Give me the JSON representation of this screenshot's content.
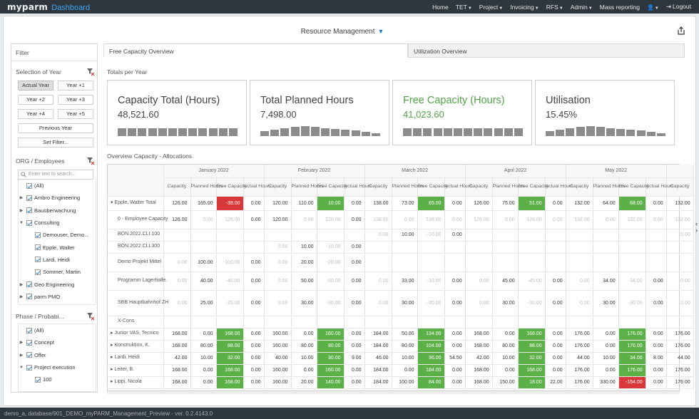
{
  "nav": {
    "brand": "myparm",
    "app": "Dashboard",
    "items": [
      "Home",
      "TET",
      "Project",
      "Invoicing",
      "RFS",
      "Admin",
      "Mass reporting",
      "",
      "Logout"
    ]
  },
  "page": {
    "title": "Resource Management"
  },
  "filter": {
    "heading": "Filter",
    "year_section": "Selection of Year",
    "year_buttons": [
      "Actual Year",
      "Year +1",
      "Year +2",
      "Year +3",
      "Year +4",
      "Year +5"
    ],
    "previous_year": "Previous Year",
    "set_filter": "Set Filter...",
    "org_section": "ORG / Employees",
    "search_placeholder": "Enter text to search...",
    "org_tree": [
      {
        "label": "(All)",
        "level": 0,
        "toggle": ""
      },
      {
        "label": "Ambro Engineering",
        "level": 0,
        "toggle": "▶"
      },
      {
        "label": "Bauüberwachung",
        "level": 0,
        "toggle": "▶"
      },
      {
        "label": "Consulting",
        "level": 0,
        "toggle": "▼"
      },
      {
        "label": "Demouser, Demo...",
        "level": 1,
        "toggle": ""
      },
      {
        "label": "Epple, Walter",
        "level": 1,
        "toggle": ""
      },
      {
        "label": "Lardi, Heidi",
        "level": 1,
        "toggle": ""
      },
      {
        "label": "Sommer, Martin",
        "level": 1,
        "toggle": ""
      },
      {
        "label": "Geo Engineering",
        "level": 0,
        "toggle": "▶"
      },
      {
        "label": "parm PMO",
        "level": 0,
        "toggle": "▶"
      }
    ],
    "phase_section": "Phase / Probabi...",
    "phase_tree": [
      {
        "label": "(All)",
        "level": 0,
        "toggle": ""
      },
      {
        "label": "Concept",
        "level": 0,
        "toggle": "▶"
      },
      {
        "label": "Offer",
        "level": 0,
        "toggle": "▶"
      },
      {
        "label": "Project execution",
        "level": 0,
        "toggle": "▼"
      },
      {
        "label": "100",
        "level": 1,
        "toggle": ""
      }
    ]
  },
  "tabs": [
    "Free Capacity Overview",
    "Utilization Overview"
  ],
  "totals_label": "Totals per Year",
  "kpis": [
    {
      "title": "Capacity Total (Hours)",
      "value": "48,521.60",
      "spark": [
        0.7,
        0.7,
        0.7,
        0.7,
        0.7,
        0.7,
        0.7,
        0.7,
        0.7,
        0.7,
        0.7,
        0.7
      ],
      "accent": "#444444"
    },
    {
      "title": "Total Planned Hours",
      "value": "7,498.00",
      "spark": [
        0.45,
        0.55,
        0.7,
        0.8,
        0.85,
        0.8,
        0.7,
        0.6,
        0.55,
        0.5,
        0.35,
        0.25
      ],
      "accent": "#444444"
    },
    {
      "title": "Free Capacity (Hours)",
      "value": "41,023.60",
      "spark": [
        0.7,
        0.7,
        0.7,
        0.7,
        0.7,
        0.7,
        0.7,
        0.7,
        0.7,
        0.7,
        0.7,
        0.7
      ],
      "accent": "#52a547"
    },
    {
      "title": "Utilisation",
      "value": "15.45%",
      "spark": [
        0.45,
        0.55,
        0.7,
        0.8,
        0.85,
        0.8,
        0.7,
        0.6,
        0.55,
        0.5,
        0.35,
        0.25
      ],
      "accent": "#444444"
    }
  ],
  "grid_label": "Overview Capacity - Allocations",
  "grid": {
    "months": [
      "January 2022",
      "February 2022",
      "March 2022",
      "April 2022",
      "May 2022",
      ""
    ],
    "columns": [
      "Capacity",
      "Planned Hours",
      "Free Capacity",
      "Actual Hours"
    ],
    "rows": [
      {
        "name": "▾ Epple, Walter Total",
        "h": 20,
        "cells": [
          [
            "126.00",
            "165.00",
            "-39.00",
            "0.00"
          ],
          [
            "120.00",
            "110.00",
            "10.00",
            "0.00"
          ],
          [
            "138.00",
            "73.00",
            "65.00",
            "0.00"
          ],
          [
            "126.00",
            "75.00",
            "51.00",
            "0.00"
          ],
          [
            "132.00",
            "64.00",
            "68.00",
            "0.00"
          ],
          [
            "132.00"
          ]
        ],
        "kind": "total"
      },
      {
        "name": "0 - Employee Capacity",
        "h": 26,
        "cells": [
          [
            "126.00",
            "0.00",
            "126.00",
            "0.00"
          ],
          [
            "120.00",
            "0.00",
            "120.00",
            "0.00"
          ],
          [
            "138.00",
            "0.00",
            "138.00",
            "0.00"
          ],
          [
            "126.00",
            "0.00",
            "126.00",
            "0.00"
          ],
          [
            "132.00",
            "0.00",
            "132.00",
            "0.00"
          ],
          [
            "132.00"
          ]
        ],
        "kind": "cap"
      },
      {
        "name": "BON.2022.CLI.100",
        "h": 17,
        "cells": [
          [
            "",
            "",
            "",
            ""
          ],
          [
            "",
            "",
            "",
            ""
          ],
          [
            "0.00",
            "10.00",
            "-10.00",
            "0.00"
          ],
          [
            "",
            "",
            "",
            ""
          ],
          [
            "",
            "",
            "",
            ""
          ],
          [
            "0.00"
          ]
        ],
        "kind": "alloc"
      },
      {
        "name": "BON.2022.CLI.300",
        "h": 17,
        "cells": [
          [
            "",
            "",
            "",
            ""
          ],
          [
            "0.00",
            "10.00",
            "-10.00",
            "0.00"
          ],
          [
            "",
            "",
            "",
            ""
          ],
          [
            "",
            "",
            "",
            ""
          ],
          [
            "",
            "",
            "",
            ""
          ],
          [
            ""
          ]
        ],
        "kind": "alloc"
      },
      {
        "name": "Demo Projekt Mittel",
        "h": 26,
        "cells": [
          [
            "0.00",
            "100.00",
            "-100.00",
            "0.00"
          ],
          [
            "0.00",
            "20.00",
            "-20.00",
            "0.00"
          ],
          [
            "",
            "",
            "",
            ""
          ],
          [
            "",
            "",
            "",
            ""
          ],
          [
            "",
            "",
            "",
            ""
          ],
          [
            ""
          ]
        ],
        "kind": "alloc"
      },
      {
        "name": "Programm Lagerhalle.",
        "h": 26,
        "cells": [
          [
            "0.00",
            "40.00",
            "-40.00",
            "0.00"
          ],
          [
            "0.00",
            "50.00",
            "-50.00",
            "0.00"
          ],
          [
            "0.00",
            "33.00",
            "-33.00",
            "0.00"
          ],
          [
            "0.00",
            "45.00",
            "-45.00",
            "0.00"
          ],
          [
            "0.00",
            "34.00",
            "-34.00",
            "0.00"
          ],
          [
            "0.00"
          ]
        ],
        "kind": "alloc"
      },
      {
        "name": "SBB Hauptbahnhof ZH",
        "h": 36,
        "cells": [
          [
            "0.00",
            "25.00",
            "-25.00",
            "0.00"
          ],
          [
            "0.00",
            "30.00",
            "-30.00",
            "0.00"
          ],
          [
            "0.00",
            "30.00",
            "-30.00",
            "0.00"
          ],
          [
            "0.00",
            "30.00",
            "-30.00",
            "0.00"
          ],
          [
            "0.00",
            "30.00",
            "-30.00",
            "0.00"
          ],
          [
            "0.00"
          ]
        ],
        "kind": "alloc"
      },
      {
        "name": "X-Cons",
        "h": 17,
        "cells": [
          [
            "",
            "",
            "",
            ""
          ],
          [
            "",
            "",
            "",
            ""
          ],
          [
            "",
            "",
            "",
            ""
          ],
          [
            "",
            "",
            "",
            ""
          ],
          [
            "",
            "",
            "",
            ""
          ],
          [
            ""
          ]
        ],
        "kind": "alloc"
      },
      {
        "name": "▸ Junior VAS, Tecnico",
        "h": 17,
        "cells": [
          [
            "168.00",
            "0.00",
            "168.00",
            "0.00"
          ],
          [
            "160.00",
            "0.00",
            "160.00",
            "0.00"
          ],
          [
            "184.00",
            "50.00",
            "134.00",
            "0.00"
          ],
          [
            "168.00",
            "0.00",
            "168.00",
            "0.00"
          ],
          [
            "176.00",
            "0.00",
            "176.00",
            "0.00"
          ],
          [
            "176.00"
          ]
        ],
        "kind": "total"
      },
      {
        "name": "▸ Konstruktion, K.",
        "h": 17,
        "cells": [
          [
            "168.00",
            "80.00",
            "88.00",
            "0.00"
          ],
          [
            "160.00",
            "80.00",
            "80.00",
            "0.00"
          ],
          [
            "184.00",
            "80.00",
            "104.00",
            "0.00"
          ],
          [
            "168.00",
            "80.00",
            "88.00",
            "0.00"
          ],
          [
            "176.00",
            "0.00",
            "176.00",
            "0.00"
          ],
          [
            "176.00"
          ]
        ],
        "kind": "total"
      },
      {
        "name": "▸ Lardi, Heidi",
        "h": 17,
        "cells": [
          [
            "42.00",
            "10.00",
            "32.00",
            "0.00"
          ],
          [
            "40.00",
            "10.00",
            "30.00",
            "9.00"
          ],
          [
            "46.00",
            "10.00",
            "36.00",
            "54.50"
          ],
          [
            "42.00",
            "10.00",
            "32.00",
            "0.00"
          ],
          [
            "44.00",
            "10.00",
            "34.00",
            "8.00"
          ],
          [
            "44.00"
          ]
        ],
        "kind": "total"
      },
      {
        "name": "▸ Leiter, B.",
        "h": 17,
        "cells": [
          [
            "168.00",
            "0.00",
            "168.00",
            "0.00"
          ],
          [
            "160.00",
            "0.00",
            "160.00",
            "0.00"
          ],
          [
            "184.00",
            "0.00",
            "184.00",
            "0.00"
          ],
          [
            "168.00",
            "0.00",
            "168.00",
            "0.00"
          ],
          [
            "176.00",
            "0.00",
            "176.00",
            "0.00"
          ],
          [
            "176.00"
          ]
        ],
        "kind": "total"
      },
      {
        "name": "▸ Lippi, Nicola",
        "h": 17,
        "cells": [
          [
            "168.00",
            "0.00",
            "168.00",
            "0.00"
          ],
          [
            "160.00",
            "20.00",
            "140.00",
            "0.00"
          ],
          [
            "184.00",
            "100.00",
            "84.00",
            "0.00"
          ],
          [
            "168.00",
            "150.00",
            "18.00",
            "22.00"
          ],
          [
            "176.00",
            "330.00",
            "-154.00",
            "0.00"
          ],
          [
            "176.00"
          ]
        ],
        "kind": "total"
      }
    ]
  },
  "footer": "demo_a, database/901_DEMO_myPARM_Management_Preview - ver. 0.2.4143.0"
}
